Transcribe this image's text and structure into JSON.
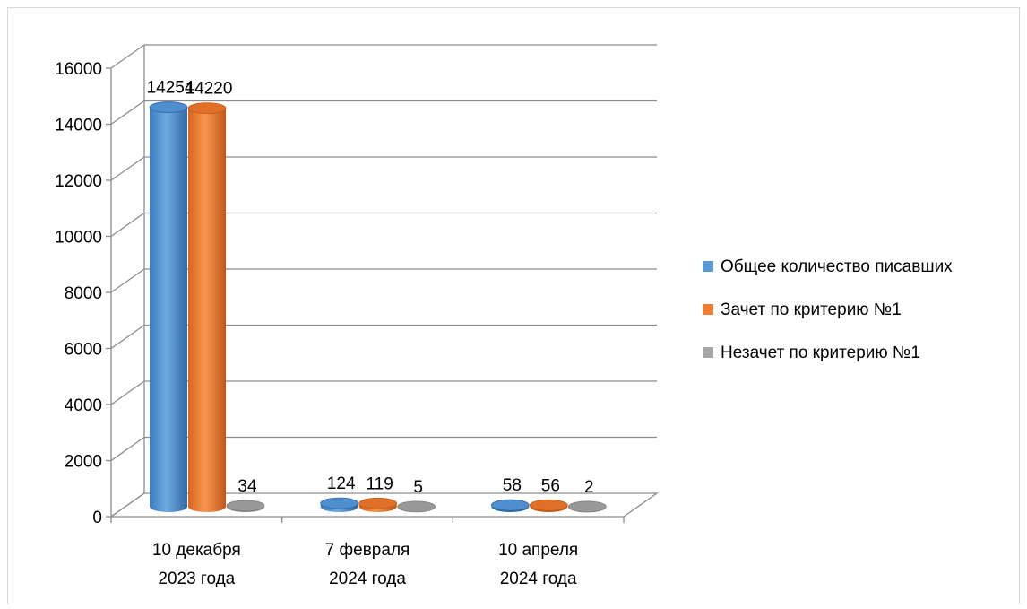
{
  "chart_data": {
    "type": "bar",
    "title": "",
    "xlabel": "",
    "ylabel": "",
    "ylim": [
      0,
      16000
    ],
    "yticks": [
      0,
      2000,
      4000,
      6000,
      8000,
      10000,
      12000,
      14000,
      16000
    ],
    "grid": true,
    "legend_position": "right",
    "categories": [
      [
        "10 декабря",
        "2023 года"
      ],
      [
        "7 февраля",
        "2024 года"
      ],
      [
        "10 апреля",
        "2024 года"
      ]
    ],
    "series": [
      {
        "name": "Общее количество писавших",
        "values": [
          14254,
          124,
          58
        ],
        "color": "#5b9bd5"
      },
      {
        "name": "Зачет по критерию №1",
        "values": [
          14220,
          119,
          56
        ],
        "color": "#ed7d31"
      },
      {
        "name": "Незачет по критерию №1",
        "values": [
          34,
          5,
          2
        ],
        "color": "#a5a5a5"
      }
    ]
  }
}
